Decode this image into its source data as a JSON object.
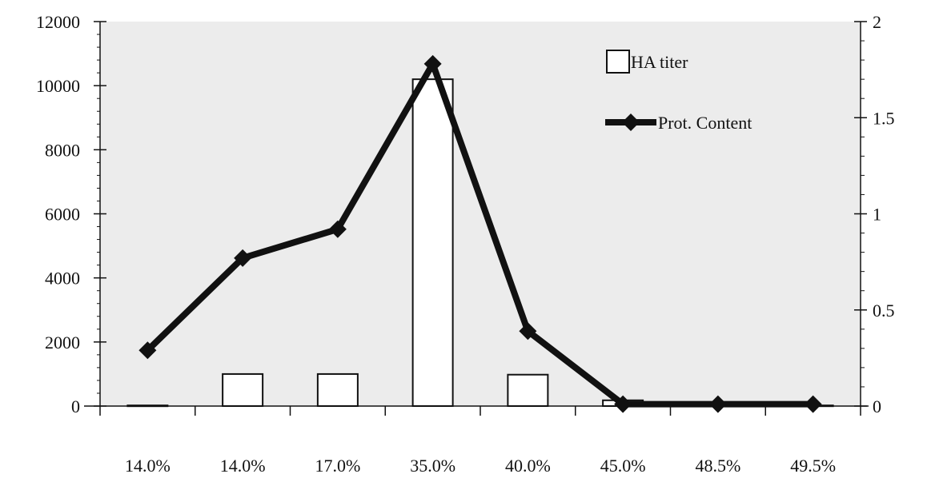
{
  "chart_data": {
    "type": "bar",
    "categories": [
      "14.0%",
      "14.0%",
      "17.0%",
      "35.0%",
      "40.0%",
      "45.0%",
      "48.5%",
      "49.5%"
    ],
    "series": [
      {
        "name": "HA titer",
        "type": "bar",
        "axis": "left",
        "values": [
          20,
          1000,
          1000,
          10200,
          980,
          180,
          20,
          20
        ]
      },
      {
        "name": "Prot. Content",
        "type": "line",
        "axis": "right",
        "values": [
          0.29,
          0.77,
          0.92,
          1.78,
          0.39,
          0.01,
          0.01,
          0.01
        ]
      }
    ],
    "y_left": {
      "ylim": [
        0,
        12000
      ],
      "ticks": [
        "0",
        "2000",
        "4000",
        "6000",
        "8000",
        "10000",
        "12000"
      ]
    },
    "y_right": {
      "ylim": [
        0,
        2
      ],
      "ticks": [
        "0",
        "0.5",
        "1",
        "1.5",
        "2"
      ]
    },
    "legend": {
      "position": "top-right",
      "entries": [
        "HA titer",
        "Prot. Content"
      ]
    },
    "plot_background": "#ececec",
    "bar_fill": "#ffffff",
    "line_color": "#111111",
    "grid": false
  }
}
